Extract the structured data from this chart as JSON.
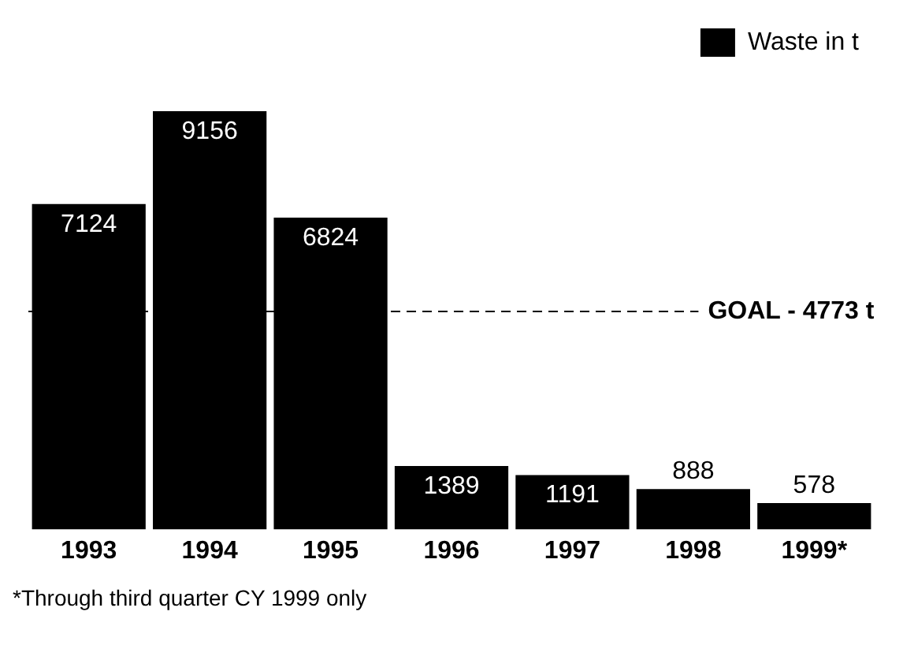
{
  "chart_data": {
    "type": "bar",
    "categories": [
      "1993",
      "1994",
      "1995",
      "1996",
      "1997",
      "1998",
      "1999*"
    ],
    "series": [
      {
        "name": "Waste in t",
        "color": "#000000",
        "values": [
          7124,
          9156,
          6824,
          1389,
          1191,
          888,
          578
        ]
      }
    ],
    "data_labels": true,
    "legend": "top right",
    "grid": false,
    "ref_lines": [
      {
        "axis": "y",
        "value": 4773,
        "label": "GOAL - 4773 t",
        "color": "#000000",
        "line_style": "dashed"
      }
    ],
    "annotations": [
      "*Through third quarter CY 1999 only"
    ]
  }
}
